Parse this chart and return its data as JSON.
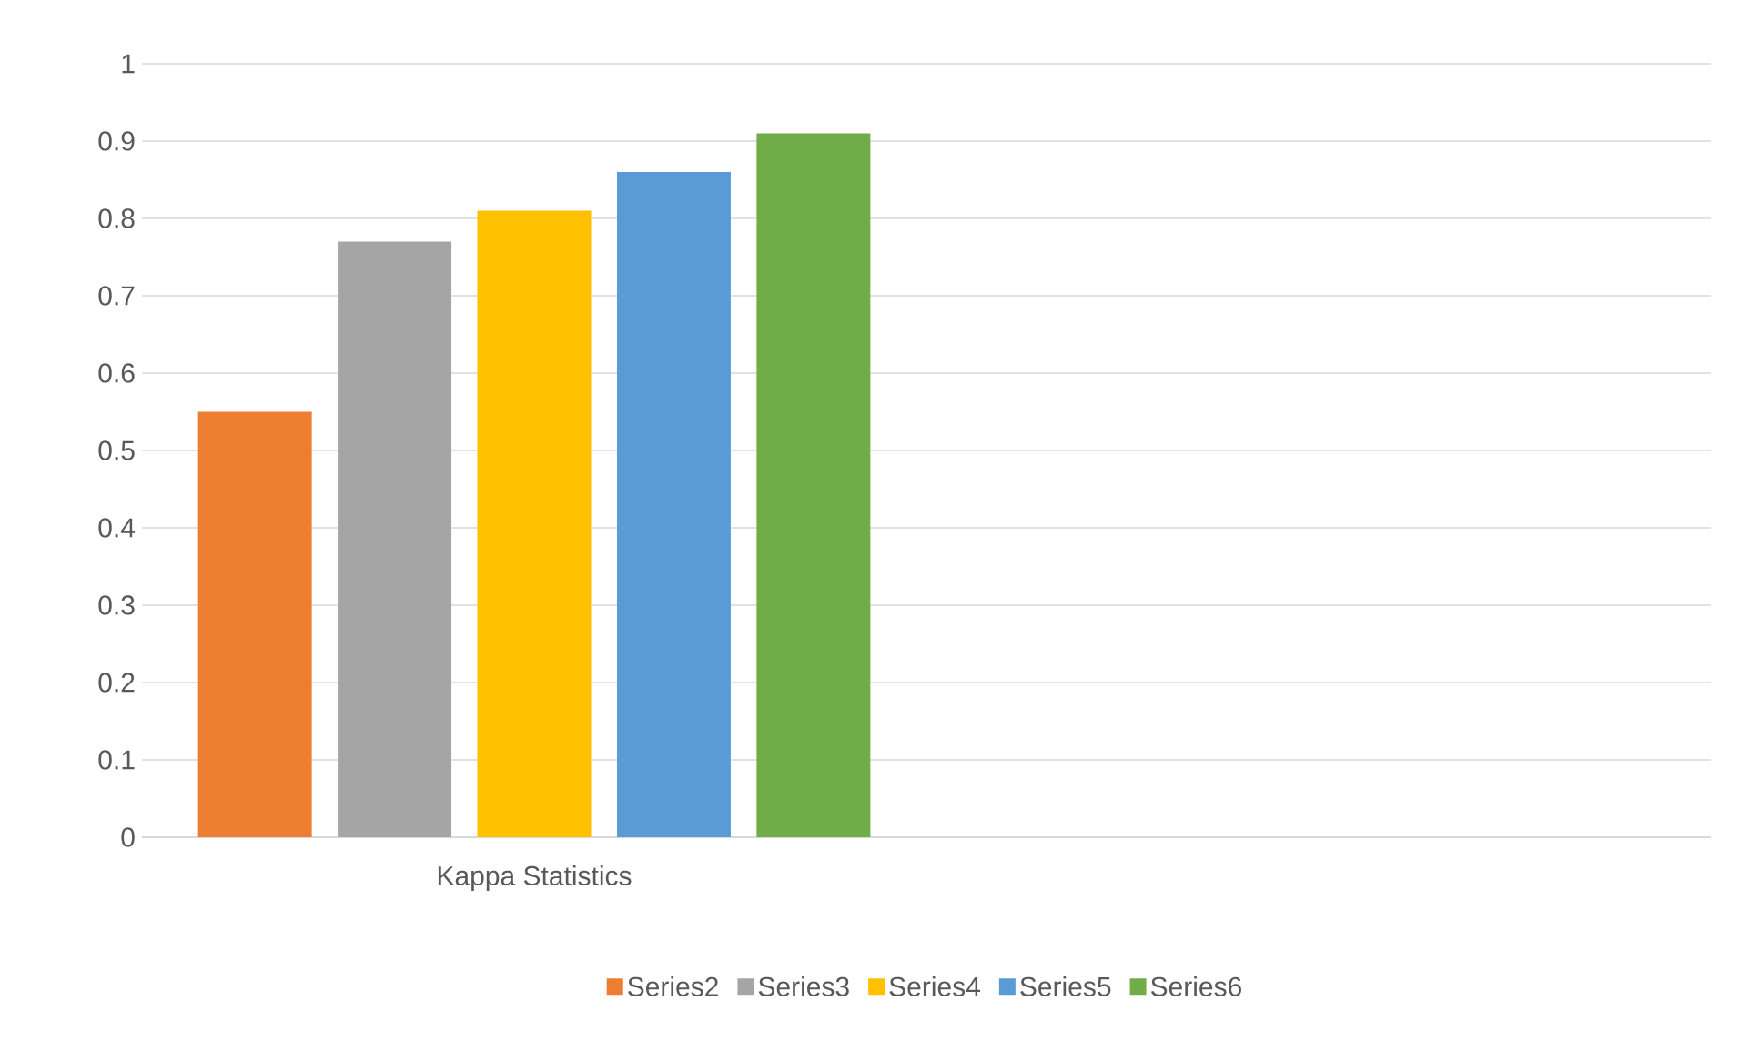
{
  "chart_data": {
    "type": "bar",
    "categories": [
      "Kappa Statistics",
      null
    ],
    "series": [
      {
        "name": "Series2",
        "color": "#ed7d31",
        "values": [
          0.55,
          null
        ]
      },
      {
        "name": "Series3",
        "color": "#a5a5a5",
        "values": [
          0.77,
          null
        ]
      },
      {
        "name": "Series4",
        "color": "#ffc000",
        "values": [
          0.81,
          null
        ]
      },
      {
        "name": "Series5",
        "color": "#5b9bd5",
        "values": [
          0.86,
          null
        ]
      },
      {
        "name": "Series6",
        "color": "#70ad47",
        "values": [
          0.91,
          null
        ]
      }
    ],
    "ylim": [
      0,
      1
    ],
    "yticks": [
      0,
      0.1,
      0.2,
      0.3,
      0.4,
      0.5,
      0.6,
      0.7,
      0.8,
      0.9,
      1
    ],
    "grid": "y",
    "legend": "bottom"
  }
}
